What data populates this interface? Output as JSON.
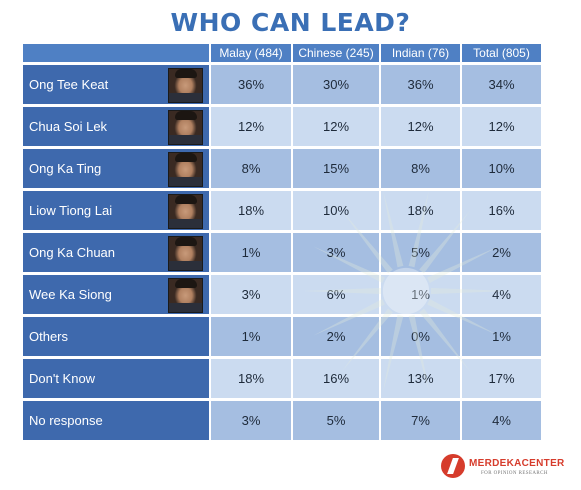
{
  "chart_data": {
    "type": "table",
    "title": "WHO CAN LEAD?",
    "columns": [
      "Malay (484)",
      "Chinese (245)",
      "Indian (76)",
      "Total (805)"
    ],
    "rows": [
      {
        "label": "Ong Tee Keat",
        "values": [
          "36%",
          "30%",
          "36%",
          "34%"
        ],
        "has_photo": true
      },
      {
        "label": "Chua Soi Lek",
        "values": [
          "12%",
          "12%",
          "12%",
          "12%"
        ],
        "has_photo": true
      },
      {
        "label": "Ong Ka Ting",
        "values": [
          "8%",
          "15%",
          "8%",
          "10%"
        ],
        "has_photo": true
      },
      {
        "label": "Liow Tiong Lai",
        "values": [
          "18%",
          "10%",
          "18%",
          "16%"
        ],
        "has_photo": true
      },
      {
        "label": "Ong Ka Chuan",
        "values": [
          "1%",
          "3%",
          "5%",
          "2%"
        ],
        "has_photo": true
      },
      {
        "label": "Wee Ka Siong",
        "values": [
          "3%",
          "6%",
          "1%",
          "4%"
        ],
        "has_photo": true
      },
      {
        "label": "Others",
        "values": [
          "1%",
          "2%",
          "0%",
          "1%"
        ],
        "has_photo": false
      },
      {
        "label": "Don't Know",
        "values": [
          "18%",
          "16%",
          "13%",
          "17%"
        ],
        "has_photo": false
      },
      {
        "label": "No response",
        "values": [
          "3%",
          "5%",
          "7%",
          "4%"
        ],
        "has_photo": false
      }
    ]
  },
  "logo": {
    "text": "MERDEKACENTER",
    "subtitle": "FOR OPINION RESEARCH"
  },
  "colors": {
    "title": "#3a6fb5",
    "header": "#4f80c4",
    "name_cell": "#3e69ad",
    "value_dark": "#9db8de",
    "value_light": "#c4d6ee",
    "logo": "#d63c2c"
  }
}
